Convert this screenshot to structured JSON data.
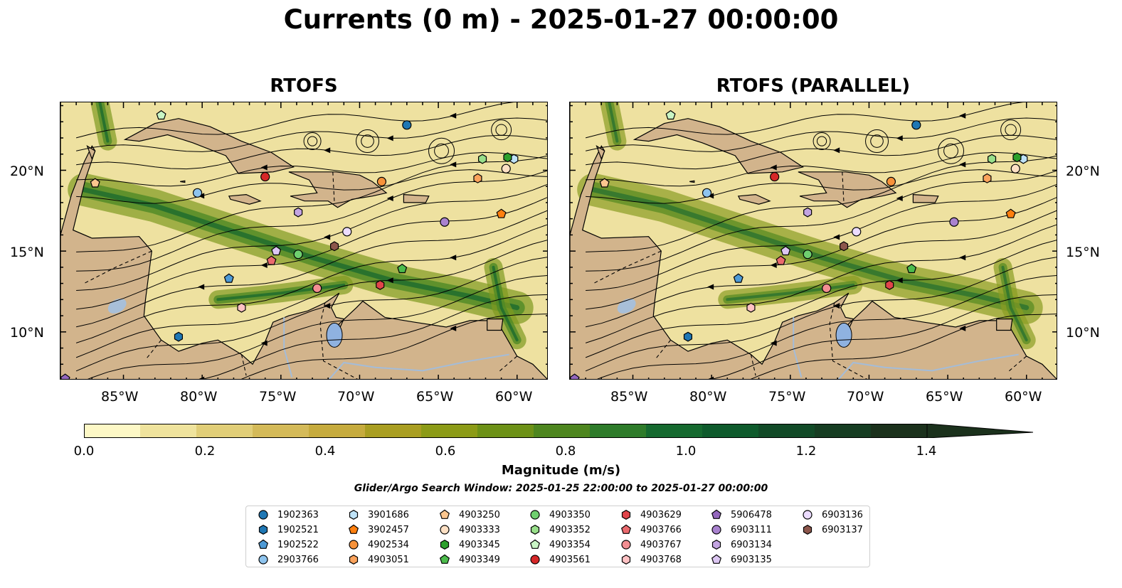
{
  "title": "Currents (0 m) - 2025-01-27 00:00:00",
  "panels": [
    {
      "title": "RTOFS"
    },
    {
      "title": "RTOFS (PARALLEL)"
    }
  ],
  "axes": {
    "lon_labels": [
      "85°W",
      "80°W",
      "75°W",
      "70°W",
      "65°W",
      "60°W"
    ],
    "lat_labels": [
      "20°N",
      "15°N",
      "10°N"
    ],
    "lon_range": [
      -89,
      -58
    ],
    "lat_range": [
      7,
      24.2
    ]
  },
  "colorbar": {
    "label": "Magnitude (m/s)",
    "ticks": [
      "0.0",
      "0.2",
      "0.4",
      "0.6",
      "0.8",
      "1.0",
      "1.2",
      "1.4"
    ],
    "range": [
      0,
      1.5
    ],
    "extend": "max",
    "colors": [
      "#fdf8c6",
      "#efe39d",
      "#e1ce78",
      "#d4ba59",
      "#c6ab3e",
      "#a99e22",
      "#8c9b17",
      "#6d9117",
      "#4e861f",
      "#2e7b2a",
      "#15692f",
      "#0e5a2c",
      "#114a27",
      "#163d22",
      "#1b311c"
    ]
  },
  "search_window": "Glider/Argo Search Window: 2025-01-25 22:00:00 to 2025-01-27 00:00:00",
  "legend": [
    {
      "id": "1902363",
      "marker": "circle",
      "color": "#1f77b4"
    },
    {
      "id": "1902521",
      "marker": "hexagon",
      "color": "#1f77b4"
    },
    {
      "id": "1902522",
      "marker": "pentagon",
      "color": "#4e9ad6"
    },
    {
      "id": "2903766",
      "marker": "circle",
      "color": "#8ec4ee"
    },
    {
      "id": "3901686",
      "marker": "hexagon",
      "color": "#bfe3f8"
    },
    {
      "id": "3902457",
      "marker": "pentagon",
      "color": "#ff7f0e"
    },
    {
      "id": "4902534",
      "marker": "circle",
      "color": "#f7923a"
    },
    {
      "id": "4903051",
      "marker": "hexagon",
      "color": "#fba35c"
    },
    {
      "id": "4903250",
      "marker": "pentagon",
      "color": "#fcc68e"
    },
    {
      "id": "4903333",
      "marker": "circle",
      "color": "#fde0c4"
    },
    {
      "id": "4903345",
      "marker": "hexagon",
      "color": "#2ca02c"
    },
    {
      "id": "4903349",
      "marker": "pentagon",
      "color": "#4cbc4c"
    },
    {
      "id": "4903350",
      "marker": "circle",
      "color": "#6fcf6f"
    },
    {
      "id": "4903352",
      "marker": "hexagon",
      "color": "#98df8a"
    },
    {
      "id": "4903354",
      "marker": "pentagon",
      "color": "#c9f5c5"
    },
    {
      "id": "4903561",
      "marker": "circle",
      "color": "#d62728"
    },
    {
      "id": "4903629",
      "marker": "hexagon",
      "color": "#e0444a"
    },
    {
      "id": "4903766",
      "marker": "pentagon",
      "color": "#ea6a6e"
    },
    {
      "id": "4903767",
      "marker": "circle",
      "color": "#f28e92"
    },
    {
      "id": "4903768",
      "marker": "hexagon",
      "color": "#ffc1c3"
    },
    {
      "id": "5906478",
      "marker": "pentagon",
      "color": "#9467bd"
    },
    {
      "id": "6903111",
      "marker": "circle",
      "color": "#a982cf"
    },
    {
      "id": "6903134",
      "marker": "hexagon",
      "color": "#c3a4e1"
    },
    {
      "id": "6903135",
      "marker": "pentagon",
      "color": "#dcc6f2"
    },
    {
      "id": "6903136",
      "marker": "circle",
      "color": "#ecdcff"
    },
    {
      "id": "6903137",
      "marker": "hexagon",
      "color": "#8c564b"
    }
  ],
  "floats": [
    {
      "id": "1902363",
      "lon": -67.0,
      "lat": 22.8
    },
    {
      "id": "1902521",
      "lon": -81.5,
      "lat": 9.7
    },
    {
      "id": "1902522",
      "lon": -78.3,
      "lat": 13.3
    },
    {
      "id": "2903766",
      "lon": -80.3,
      "lat": 18.6
    },
    {
      "id": "3901686",
      "lon": -60.2,
      "lat": 20.7
    },
    {
      "id": "3902457",
      "lon": -61.0,
      "lat": 17.3
    },
    {
      "id": "4902534",
      "lon": -68.6,
      "lat": 19.3
    },
    {
      "id": "4903051",
      "lon": -62.5,
      "lat": 19.5
    },
    {
      "id": "4903250",
      "lon": -86.8,
      "lat": 19.2
    },
    {
      "id": "4903333",
      "lon": -60.7,
      "lat": 20.1
    },
    {
      "id": "4903345",
      "lon": -60.6,
      "lat": 20.8
    },
    {
      "id": "4903349",
      "lon": -67.3,
      "lat": 13.9
    },
    {
      "id": "4903350",
      "lon": -73.9,
      "lat": 14.8
    },
    {
      "id": "4903352",
      "lon": -62.2,
      "lat": 20.7
    },
    {
      "id": "4903354",
      "lon": -82.6,
      "lat": 23.4
    },
    {
      "id": "4903561",
      "lon": -76.0,
      "lat": 19.6
    },
    {
      "id": "4903629",
      "lon": -68.7,
      "lat": 12.9
    },
    {
      "id": "4903766",
      "lon": -75.6,
      "lat": 14.4
    },
    {
      "id": "4903767",
      "lon": -72.7,
      "lat": 12.7
    },
    {
      "id": "4903768",
      "lon": -77.5,
      "lat": 11.5
    },
    {
      "id": "5906478",
      "lon": -88.7,
      "lat": 7.1
    },
    {
      "id": "6903111",
      "lon": -64.6,
      "lat": 16.8
    },
    {
      "id": "6903134",
      "lon": -73.9,
      "lat": 17.4
    },
    {
      "id": "6903135",
      "lon": -75.3,
      "lat": 15.0
    },
    {
      "id": "6903136",
      "lon": -70.8,
      "lat": 16.2
    },
    {
      "id": "6903137",
      "lon": -71.6,
      "lat": 15.3
    }
  ]
}
